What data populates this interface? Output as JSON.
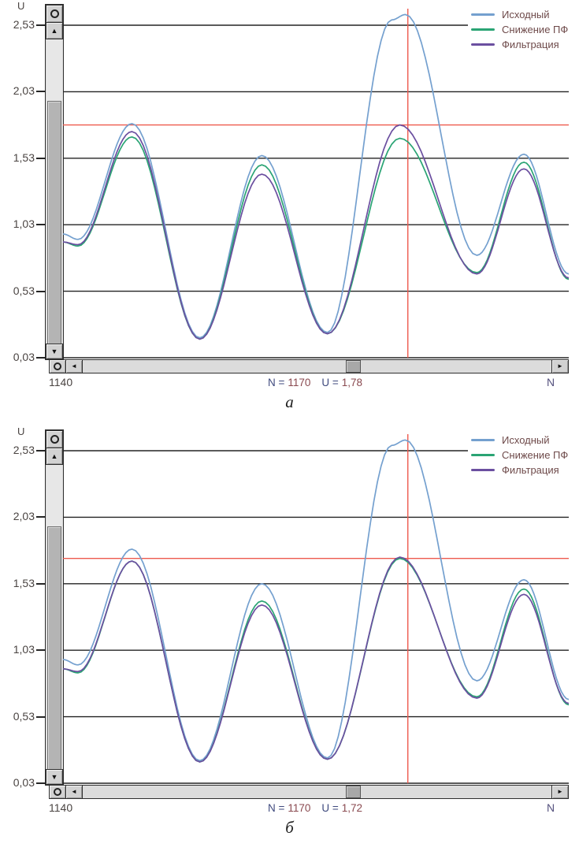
{
  "page": {
    "background": "#ffffff"
  },
  "colors": {
    "grid": "#232323",
    "crosshair_red": "#ee5a4e",
    "axis_text": "#4a4442",
    "legend_text": "#6e4a4a",
    "status_label": "#3f4a7e",
    "status_value": "#8a4a50"
  },
  "ui": {
    "up_arrow": "▲",
    "down_arrow": "▼",
    "left_arrow": "◄",
    "right_arrow": "►"
  },
  "chart_data": [
    {
      "id": "a",
      "type": "line",
      "caption": "а",
      "y_axis_label": "U",
      "xlabel": "N",
      "ylabel": "U",
      "x_start_label": "1140",
      "x_end_label": "N",
      "x_range": [
        1140,
        1184
      ],
      "y_range": [
        0.03,
        2.53
      ],
      "grid": true,
      "legend_position": "top-right",
      "y_ticks": [
        {
          "label": "2,53",
          "value": 2.53
        },
        {
          "label": "2,03",
          "value": 2.03
        },
        {
          "label": "1,53",
          "value": 1.53
        },
        {
          "label": "1,03",
          "value": 1.03
        },
        {
          "label": "0,53",
          "value": 0.53
        },
        {
          "label": "0,03",
          "value": 0.03
        }
      ],
      "crosshair": {
        "n": 1170,
        "u": 1.78
      },
      "status": {
        "n_label": "N =",
        "n_value": "1170",
        "u_label": "U =",
        "u_value": "1,78"
      },
      "series": [
        {
          "name": "Исходный",
          "color": "#74a0cf",
          "points": [
            [
              1140,
              0.96
            ],
            [
              1141.3,
              0.92
            ],
            [
              1146,
              1.79
            ],
            [
              1151.9,
              0.18
            ],
            [
              1157.3,
              1.55
            ],
            [
              1163,
              0.22
            ],
            [
              1168.6,
              2.57
            ],
            [
              1169.8,
              2.61
            ],
            [
              1176,
              0.8
            ],
            [
              1180.1,
              1.56
            ],
            [
              1184,
              0.66
            ]
          ]
        },
        {
          "name": "Снижение ПФ",
          "color": "#2aa474",
          "points": [
            [
              1140,
              0.9
            ],
            [
              1141.3,
              0.87
            ],
            [
              1146,
              1.69
            ],
            [
              1151.9,
              0.17
            ],
            [
              1157.3,
              1.48
            ],
            [
              1163,
              0.21
            ],
            [
              1169.3,
              1.68
            ],
            [
              1176,
              0.67
            ],
            [
              1180.1,
              1.5
            ],
            [
              1184,
              0.62
            ]
          ]
        },
        {
          "name": "Фильтрация",
          "color": "#6b4fa0",
          "points": [
            [
              1140,
              0.9
            ],
            [
              1141.3,
              0.88
            ],
            [
              1146,
              1.73
            ],
            [
              1151.9,
              0.17
            ],
            [
              1157.3,
              1.41
            ],
            [
              1163,
              0.21
            ],
            [
              1169.3,
              1.78
            ],
            [
              1176,
              0.66
            ],
            [
              1180.1,
              1.45
            ],
            [
              1184,
              0.63
            ]
          ]
        }
      ]
    },
    {
      "id": "b",
      "type": "line",
      "caption": "б",
      "y_axis_label": "U",
      "xlabel": "N",
      "ylabel": "U",
      "x_start_label": "1140",
      "x_end_label": "N",
      "x_range": [
        1140,
        1184
      ],
      "y_range": [
        0.03,
        2.53
      ],
      "grid": true,
      "legend_position": "top-right",
      "y_ticks": [
        {
          "label": "2,53",
          "value": 2.53
        },
        {
          "label": "2,03",
          "value": 2.03
        },
        {
          "label": "1,53",
          "value": 1.53
        },
        {
          "label": "1,03",
          "value": 1.03
        },
        {
          "label": "0,53",
          "value": 0.53
        },
        {
          "label": "0,03",
          "value": 0.03
        }
      ],
      "crosshair": {
        "n": 1170,
        "u": 1.72
      },
      "status": {
        "n_label": "N =",
        "n_value": "1170",
        "u_label": "U =",
        "u_value": "1,72"
      },
      "series": [
        {
          "name": "Исходный",
          "color": "#74a0cf",
          "points": [
            [
              1140,
              0.96
            ],
            [
              1141.3,
              0.92
            ],
            [
              1146,
              1.79
            ],
            [
              1151.9,
              0.2
            ],
            [
              1157.3,
              1.53
            ],
            [
              1163,
              0.22
            ],
            [
              1168.6,
              2.57
            ],
            [
              1169.8,
              2.61
            ],
            [
              1176,
              0.8
            ],
            [
              1180.1,
              1.56
            ],
            [
              1184,
              0.66
            ]
          ]
        },
        {
          "name": "Снижение ПФ",
          "color": "#2aa474",
          "points": [
            [
              1140,
              0.89
            ],
            [
              1141.3,
              0.86
            ],
            [
              1146,
              1.7
            ],
            [
              1151.9,
              0.19
            ],
            [
              1157.3,
              1.4
            ],
            [
              1163,
              0.21
            ],
            [
              1169.3,
              1.72
            ],
            [
              1176,
              0.68
            ],
            [
              1180.1,
              1.49
            ],
            [
              1184,
              0.62
            ]
          ]
        },
        {
          "name": "Фильтрация",
          "color": "#6b4fa0",
          "points": [
            [
              1140,
              0.89
            ],
            [
              1141.3,
              0.87
            ],
            [
              1146,
              1.7
            ],
            [
              1151.9,
              0.19
            ],
            [
              1157.3,
              1.37
            ],
            [
              1163,
              0.21
            ],
            [
              1169.3,
              1.73
            ],
            [
              1176,
              0.67
            ],
            [
              1180.1,
              1.45
            ],
            [
              1184,
              0.63
            ]
          ]
        }
      ]
    }
  ]
}
